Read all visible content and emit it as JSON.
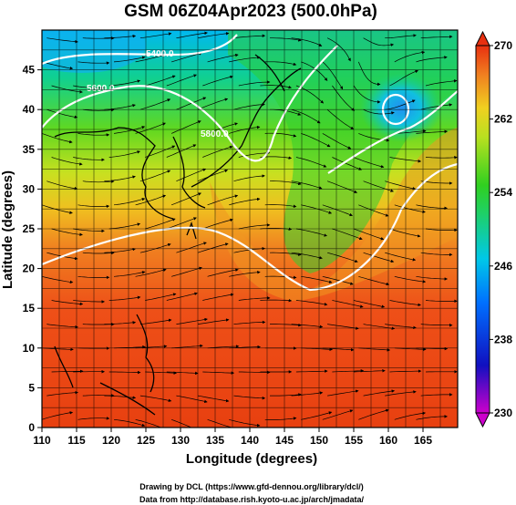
{
  "chart_data": {
    "type": "heatmap",
    "title": "GSM 06Z04Apr2023 (500.0hPa)",
    "xlabel": "Longitude (degrees)",
    "ylabel": "Latitude (degrees)",
    "xlim": [
      110,
      170
    ],
    "ylim": [
      0,
      50
    ],
    "xticks": [
      110,
      115,
      120,
      125,
      130,
      135,
      140,
      145,
      150,
      155,
      160,
      165
    ],
    "yticks": [
      0,
      5,
      10,
      15,
      20,
      25,
      30,
      35,
      40,
      45
    ],
    "grid": true,
    "overlays": [
      "streamlines",
      "coastlines",
      "contours"
    ],
    "contour_labels": [
      "5400.0",
      "5600.0",
      "5800.0"
    ],
    "colorbar": {
      "min": 230,
      "max": 270,
      "ticks": [
        270,
        262,
        254,
        246,
        238,
        230
      ],
      "colors": [
        "#cc00cc",
        "#1010c0",
        "#0070ff",
        "#00c8e8",
        "#20d060",
        "#30d020",
        "#b8e020",
        "#f0d020",
        "#f08020",
        "#e83010"
      ]
    }
  },
  "credits": {
    "line1": "Drawing by DCL (https://www.gfd-dennou.org/library/dcl/)",
    "line2": "Data from http://database.rish.kyoto-u.ac.jp/arch/jmadata/"
  }
}
